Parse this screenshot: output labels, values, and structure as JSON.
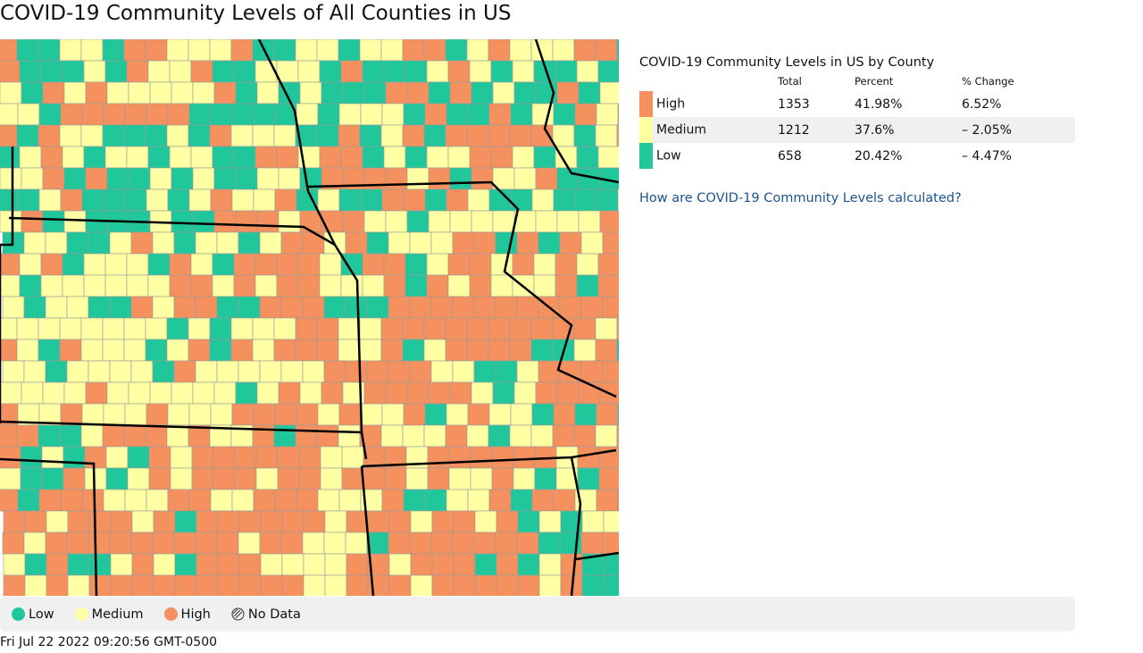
{
  "title": "COVID-19 Community Levels of All Counties in US",
  "summary": {
    "title": "COVID-19 Community Levels in US by County",
    "columns": [
      "Total",
      "Percent",
      "% Change"
    ],
    "rows": [
      [
        "High",
        "1353",
        "41.98%",
        "6.52%"
      ],
      [
        "Medium",
        "1212",
        "37.6%",
        "– 2.05%"
      ],
      [
        "Low",
        "658",
        "20.42%",
        "– 4.47%"
      ]
    ]
  },
  "link": "How are COVID-19 Community Levels calculated?",
  "legend": [
    "Low",
    "Medium",
    "High",
    "No Data"
  ],
  "timestamp": "Fri Jul 22 2022 09:20:56 GMT-0500"
}
